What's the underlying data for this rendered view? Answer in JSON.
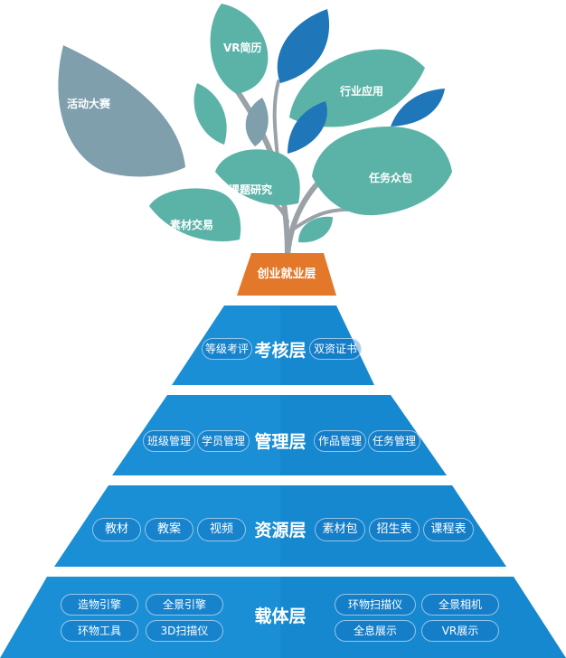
{
  "colors": {
    "layer_blue": "#1a8fd6",
    "layer_blue_dark": "#117cc2",
    "employment_orange": "#e3782a",
    "leaf_teal": "#5bb3a8",
    "leaf_slate": "#7f9fad",
    "leaf_blue": "#1f76b8",
    "stem_gray": "#9aa1a7"
  },
  "leaves": {
    "activity": "活动大赛",
    "vr_resume": "VR简历",
    "industry_app": "行业应用",
    "course_research": "课题研究",
    "crowdsourcing": "任务众包",
    "material_trade": "素材交易"
  },
  "employment_layer": {
    "title": "创业就业层"
  },
  "assessment_layer": {
    "title": "考核层",
    "left_items": [
      "等级考评"
    ],
    "right_items": [
      "双资证书"
    ]
  },
  "management_layer": {
    "title": "管理层",
    "left_items": [
      "班级管理",
      "学员管理"
    ],
    "right_items": [
      "作品管理",
      "任务管理"
    ]
  },
  "resource_layer": {
    "title": "资源层",
    "left_items": [
      "教材",
      "教案",
      "视频"
    ],
    "right_items": [
      "素材包",
      "招生表",
      "课程表"
    ]
  },
  "carrier_layer": {
    "title": "载体层",
    "left_items": [
      "造物引擎",
      "全景引擎",
      "环物工具",
      "3D扫描仪"
    ],
    "right_items": [
      "环物扫描仪",
      "全景相机",
      "全息展示",
      "VR展示"
    ]
  }
}
